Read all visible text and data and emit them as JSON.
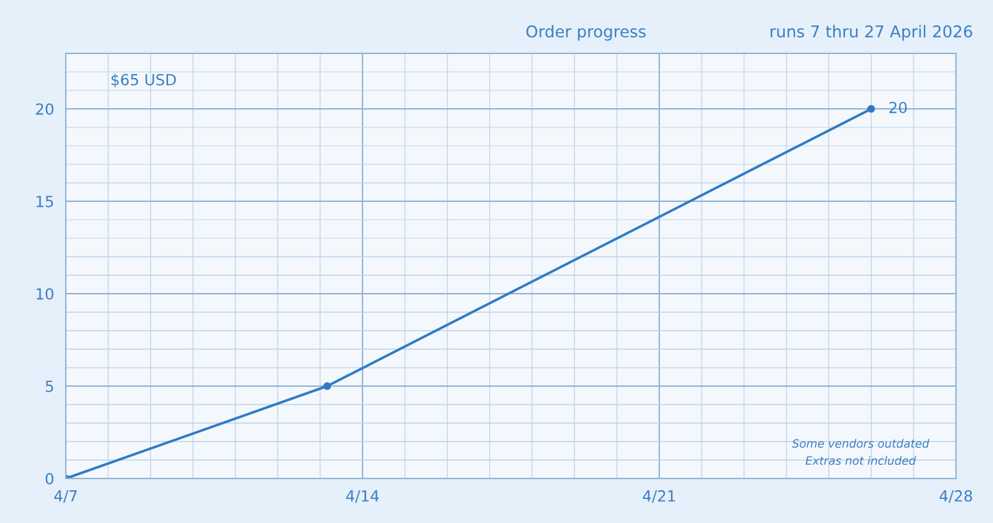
{
  "chart_data": {
    "type": "line",
    "subtitle": "Order progress",
    "x": [
      "2026-04-07",
      "2026-04-13T04:00",
      "2026-04-26"
    ],
    "series": [
      {
        "color": "#2f7bc4",
        "values": [
          0,
          5,
          20
        ],
        "value_labels": [
          null,
          null,
          "20"
        ]
      }
    ],
    "xlim": [
      "2026-04-07",
      "2026-04-28"
    ],
    "xticks": [
      {
        "value": "2026-04-07",
        "label": "4/7"
      },
      {
        "value": "2026-04-08",
        "label": null
      },
      {
        "value": "2026-04-09",
        "label": null
      },
      {
        "value": "2026-04-10",
        "label": null
      },
      {
        "value": "2026-04-11",
        "label": null
      },
      {
        "value": "2026-04-12",
        "label": null
      },
      {
        "value": "2026-04-13",
        "label": null
      },
      {
        "value": "2026-04-14",
        "label": "4/14"
      },
      {
        "value": "2026-04-15",
        "label": null
      },
      {
        "value": "2026-04-16",
        "label": null
      },
      {
        "value": "2026-04-17",
        "label": null
      },
      {
        "value": "2026-04-18",
        "label": null
      },
      {
        "value": "2026-04-19",
        "label": null
      },
      {
        "value": "2026-04-20",
        "label": null
      },
      {
        "value": "2026-04-21",
        "label": "4/21"
      },
      {
        "value": "2026-04-22",
        "label": null
      },
      {
        "value": "2026-04-23",
        "label": null
      },
      {
        "value": "2026-04-24",
        "label": null
      },
      {
        "value": "2026-04-25",
        "label": null
      },
      {
        "value": "2026-04-26",
        "label": null
      },
      {
        "value": "2026-04-27",
        "label": null
      },
      {
        "value": "2026-04-28",
        "label": "4/28"
      }
    ],
    "ylim": [
      0,
      23
    ],
    "yticks": [
      0,
      {
        "value": 1,
        "label": null
      },
      {
        "value": 2,
        "label": null
      },
      {
        "value": 3,
        "label": null
      },
      {
        "value": 4,
        "label": null
      },
      5,
      {
        "value": 6,
        "label": null
      },
      {
        "value": 7,
        "label": null
      },
      {
        "value": 8,
        "label": null
      },
      {
        "value": 9,
        "label": null
      },
      10,
      {
        "value": 11,
        "label": null
      },
      {
        "value": 12,
        "label": null
      },
      {
        "value": 13,
        "label": null
      },
      {
        "value": 14,
        "label": null
      },
      15,
      {
        "value": 16,
        "label": null
      },
      {
        "value": 17,
        "label": null
      },
      {
        "value": 18,
        "label": null
      },
      {
        "value": 19,
        "label": null
      },
      20,
      {
        "value": 21,
        "label": null
      },
      {
        "value": 22,
        "label": null
      }
    ],
    "grid": true,
    "marker": "circle",
    "line_style": "solid",
    "annotations": [
      "runs 7 thru 27 April 2026",
      "$65 USD",
      "Some vendors outdated\nExtras not included"
    ]
  }
}
